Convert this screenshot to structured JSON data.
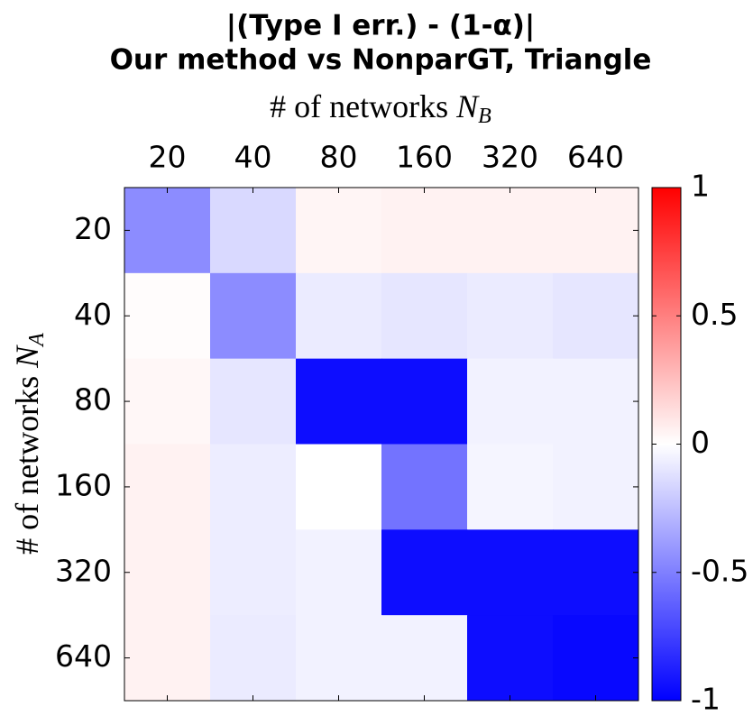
{
  "chart_data": {
    "type": "heatmap",
    "title": [
      "|(Type I err.) - (1-α)|",
      "Our method vs NonparGT, Triangle"
    ],
    "xlabel": "# of networks N_B",
    "ylabel": "# of networks N_A",
    "x_categories": [
      "20",
      "40",
      "80",
      "160",
      "320",
      "640"
    ],
    "y_categories": [
      "20",
      "40",
      "80",
      "160",
      "320",
      "640"
    ],
    "values": [
      [
        -0.45,
        -0.15,
        0.04,
        0.05,
        0.05,
        0.05
      ],
      [
        0.01,
        -0.45,
        -0.08,
        -0.1,
        -0.08,
        -0.1
      ],
      [
        0.03,
        -0.1,
        -0.95,
        -0.95,
        -0.05,
        -0.05
      ],
      [
        0.05,
        -0.07,
        0,
        -0.55,
        -0.04,
        -0.05
      ],
      [
        0.05,
        -0.07,
        -0.05,
        -0.95,
        -0.95,
        -0.95
      ],
      [
        0.05,
        -0.08,
        -0.05,
        -0.05,
        -0.95,
        -0.97
      ]
    ],
    "colormap": [
      "#0000ff",
      "#ffffff",
      "#ff0000"
    ],
    "clim": [
      -1,
      1
    ],
    "cticks": [
      -1,
      -0.5,
      0,
      0.5,
      1
    ]
  }
}
